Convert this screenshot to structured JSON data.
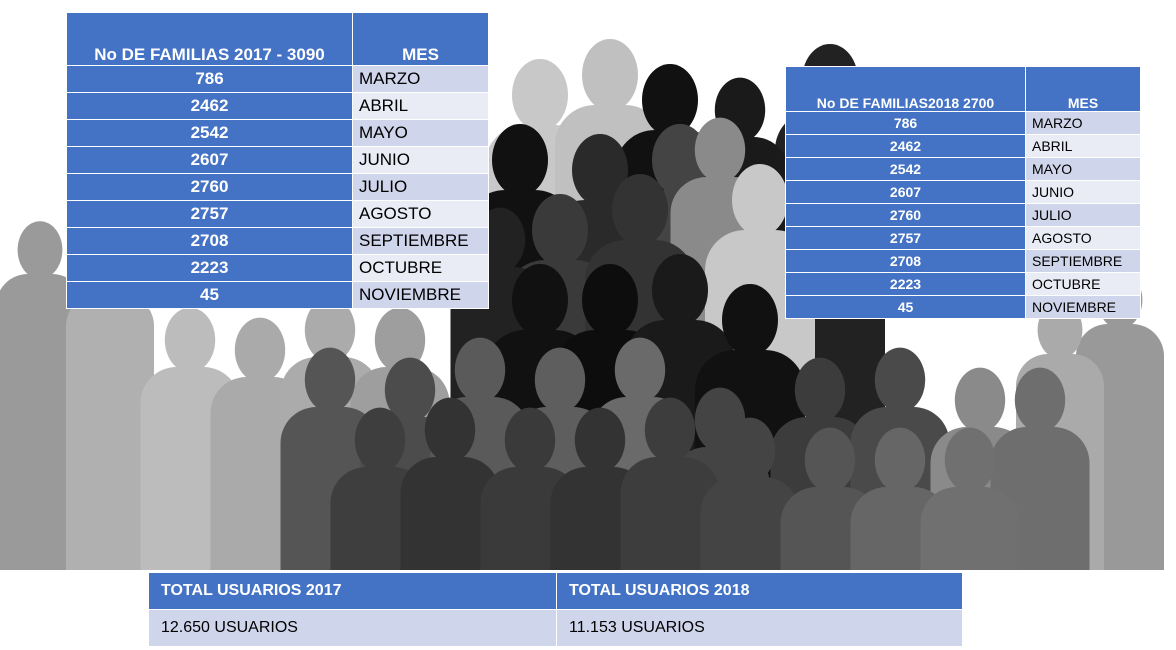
{
  "table1": {
    "header": [
      "No DE FAMILIAS  2017 - 3090",
      "MES"
    ],
    "rows": [
      [
        "786",
        "MARZO"
      ],
      [
        "2462",
        "ABRIL"
      ],
      [
        "2542",
        "MAYO"
      ],
      [
        "2607",
        "JUNIO"
      ],
      [
        "2760",
        "JULIO"
      ],
      [
        "2757",
        "AGOSTO"
      ],
      [
        "2708",
        "SEPTIEMBRE"
      ],
      [
        "2223",
        "OCTUBRE"
      ],
      [
        "45",
        "NOVIEMBRE"
      ]
    ]
  },
  "table2": {
    "header": [
      "No DE FAMILIAS2018 2700",
      "MES"
    ],
    "rows": [
      [
        "786",
        "MARZO"
      ],
      [
        "2462",
        "ABRIL"
      ],
      [
        "2542",
        "MAYO"
      ],
      [
        "2607",
        "JUNIO"
      ],
      [
        "2760",
        "JULIO"
      ],
      [
        "2757",
        "AGOSTO"
      ],
      [
        "2708",
        "SEPTIEMBRE"
      ],
      [
        "2223",
        "OCTUBRE"
      ],
      [
        "45",
        "NOVIEMBRE"
      ]
    ]
  },
  "totals": {
    "header": [
      "TOTAL USUARIOS 2017",
      "TOTAL USUARIOS 2018"
    ],
    "rows": [
      [
        "12.650 USUARIOS",
        "11.153 USUARIOS"
      ]
    ]
  }
}
